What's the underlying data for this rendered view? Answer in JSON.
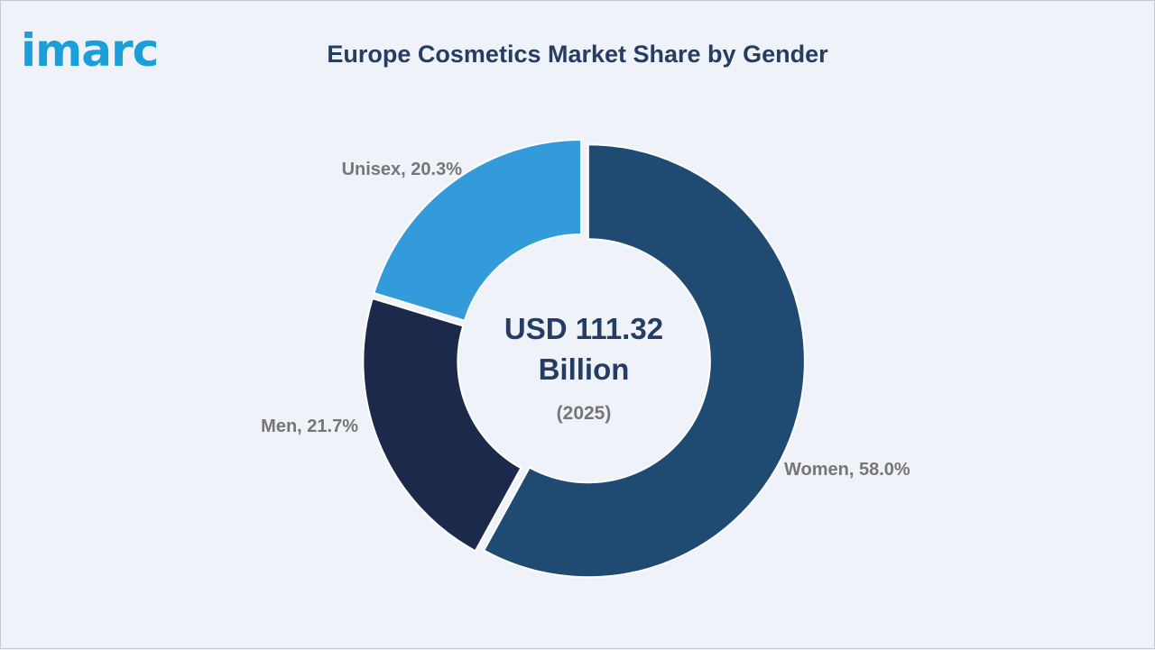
{
  "brand": {
    "logo_text": "imarc",
    "logo_color": "#1a9fdb"
  },
  "chart_data": {
    "type": "pie",
    "title": "Europe Cosmetics Market Share by Gender",
    "center_text": [
      "USD 111.32",
      "Billion"
    ],
    "center_subtext": "(2025)",
    "unit": "%",
    "categories": [
      "Women",
      "Men",
      "Unisex"
    ],
    "values": [
      58.0,
      21.7,
      20.3
    ],
    "labels": [
      "Women, 58.0%",
      "Men, 21.7%",
      "Unisex, 20.3%"
    ],
    "colors": [
      "#1f4b73",
      "#1b2a4b",
      "#349bdb"
    ],
    "donut": true,
    "legend": "none"
  }
}
